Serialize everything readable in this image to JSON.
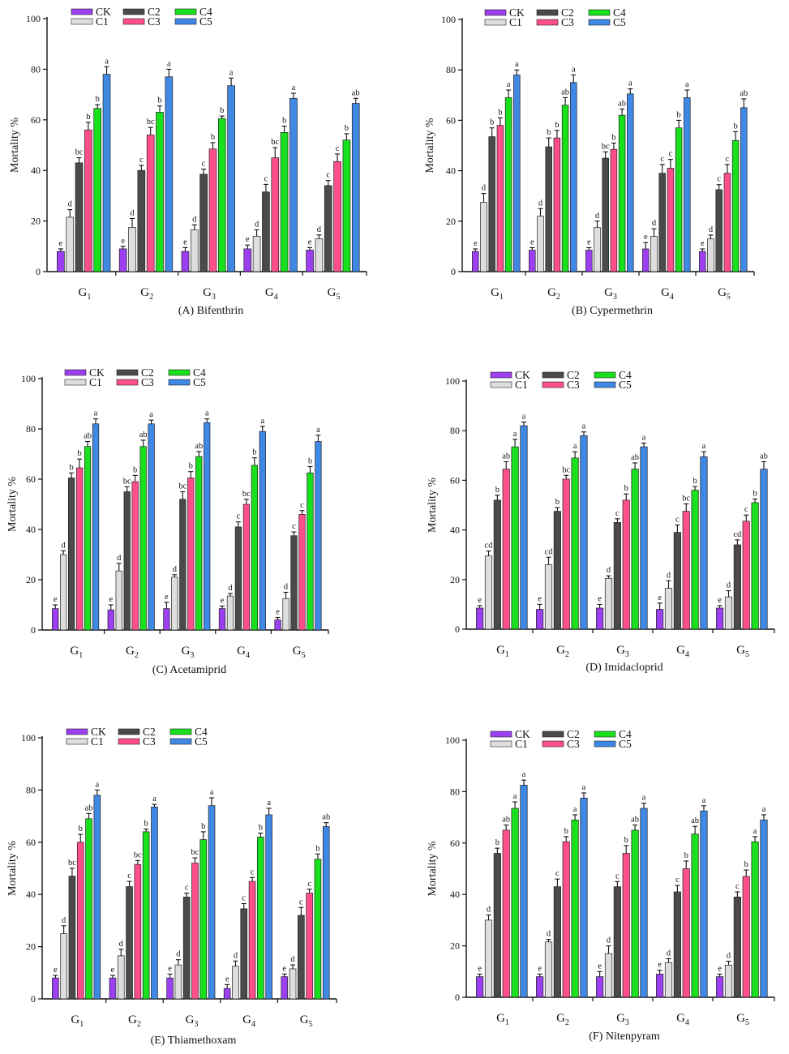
{
  "colors": {
    "CK": "#9b3ff0",
    "C1": "#dedede",
    "C2": "#4a4a4a",
    "C3": "#ff4f8b",
    "C4": "#19e01d",
    "C5": "#3f88e3"
  },
  "legend": [
    "CK",
    "C1",
    "C2",
    "C3",
    "C4",
    "C5"
  ],
  "chart_data": [
    {
      "type": "bar",
      "title": "(A) Bifenthrin",
      "ylabel": "Mortality %",
      "ylim": [
        0,
        100
      ],
      "yticks": [
        "0",
        "20",
        "40",
        "60",
        "80",
        "100"
      ],
      "categories": [
        {
          "base": "G",
          "sub": "1"
        },
        {
          "base": "G",
          "sub": "2"
        },
        {
          "base": "G",
          "sub": "3"
        },
        {
          "base": "G",
          "sub": "4"
        },
        {
          "base": "G",
          "sub": "5"
        }
      ],
      "series": [
        {
          "name": "CK",
          "values": [
            8,
            9,
            8,
            9,
            8.5
          ],
          "errors": [
            1,
            1,
            1.5,
            1.5,
            1
          ],
          "letters": [
            "e",
            "e",
            "e",
            "e",
            "e"
          ]
        },
        {
          "name": "C1",
          "values": [
            21.5,
            17.5,
            16.5,
            14,
            13
          ],
          "errors": [
            3,
            3.5,
            2,
            2.5,
            1.5
          ],
          "letters": [
            "d",
            "d",
            "d",
            "d",
            "d"
          ]
        },
        {
          "name": "C2",
          "values": [
            43,
            40,
            38.5,
            31.5,
            34
          ],
          "errors": [
            2,
            2,
            2,
            3,
            2
          ],
          "letters": [
            "bc",
            "c",
            "c",
            "c",
            "c"
          ]
        },
        {
          "name": "C3",
          "values": [
            56,
            54,
            48.5,
            45,
            43.5
          ],
          "errors": [
            3,
            3,
            2.5,
            4,
            3
          ],
          "letters": [
            "b",
            "bc",
            "b",
            "bc",
            "c"
          ]
        },
        {
          "name": "C4",
          "values": [
            64.5,
            63,
            60.5,
            55,
            52
          ],
          "errors": [
            1.5,
            2.5,
            1,
            2.5,
            2.5
          ],
          "letters": [
            "b",
            "b",
            "b",
            "b",
            "b"
          ]
        },
        {
          "name": "C5",
          "values": [
            78,
            77,
            73.5,
            68.5,
            66.5
          ],
          "errors": [
            3,
            3,
            3,
            2,
            2
          ],
          "letters": [
            "a",
            "a",
            "a",
            "a",
            "ab"
          ]
        }
      ]
    },
    {
      "type": "bar",
      "title": "(B) Cypermethrin",
      "ylabel": "Mortality %",
      "ylim": [
        0,
        100
      ],
      "yticks": [
        "0",
        "20",
        "40",
        "60",
        "80",
        "100"
      ],
      "categories": [
        {
          "base": "G",
          "sub": "1"
        },
        {
          "base": "G",
          "sub": "2"
        },
        {
          "base": "G",
          "sub": "3"
        },
        {
          "base": "G",
          "sub": "4"
        },
        {
          "base": "G",
          "sub": "5"
        }
      ],
      "series": [
        {
          "name": "CK",
          "values": [
            8,
            8.5,
            8.5,
            9,
            8
          ],
          "errors": [
            1,
            1,
            1,
            2.5,
            1
          ],
          "letters": [
            "e",
            "e",
            "e",
            "e",
            "e"
          ]
        },
        {
          "name": "C1",
          "values": [
            27.5,
            22,
            17.5,
            14,
            13
          ],
          "errors": [
            3.5,
            3,
            2.5,
            3,
            1.5
          ],
          "letters": [
            "d",
            "d",
            "d",
            "d",
            "d"
          ]
        },
        {
          "name": "C2",
          "values": [
            53.5,
            49.5,
            45,
            39,
            32.5
          ],
          "errors": [
            3.5,
            3.5,
            2.5,
            3.5,
            2
          ],
          "letters": [
            "b",
            "b",
            "bc",
            "c",
            "c"
          ]
        },
        {
          "name": "C3",
          "values": [
            58,
            53,
            48.5,
            41,
            39
          ],
          "errors": [
            3,
            3,
            2.5,
            3.5,
            3.5
          ],
          "letters": [
            "b",
            "b",
            "b",
            "c",
            "c"
          ]
        },
        {
          "name": "C4",
          "values": [
            69,
            66,
            62,
            57,
            52
          ],
          "errors": [
            3,
            3,
            2.5,
            3,
            3.5
          ],
          "letters": [
            "a",
            "ab",
            "ab",
            "b",
            "b"
          ]
        },
        {
          "name": "C5",
          "values": [
            78,
            75,
            70.5,
            69,
            65
          ],
          "errors": [
            2,
            3,
            2,
            3,
            3.5
          ],
          "letters": [
            "a",
            "a",
            "a",
            "a",
            "ab"
          ]
        }
      ]
    },
    {
      "type": "bar",
      "title": "(C) Acetamiprid",
      "ylabel": "Mortality %",
      "ylim": [
        0,
        100
      ],
      "yticks": [
        "0",
        "20",
        "40",
        "60",
        "80",
        "100"
      ],
      "categories": [
        {
          "base": "G",
          "sub": "1"
        },
        {
          "base": "G",
          "sub": "2"
        },
        {
          "base": "G",
          "sub": "3"
        },
        {
          "base": "G",
          "sub": "4"
        },
        {
          "base": "G",
          "sub": "5"
        }
      ],
      "series": [
        {
          "name": "CK",
          "values": [
            8.5,
            8,
            8.5,
            8.5,
            4
          ],
          "errors": [
            1.5,
            2,
            2.5,
            1,
            1
          ],
          "letters": [
            "e",
            "e",
            "e",
            "e",
            "e"
          ]
        },
        {
          "name": "C1",
          "values": [
            30,
            23.5,
            21,
            13.5,
            12.5
          ],
          "errors": [
            1.5,
            3,
            1,
            1,
            2.5
          ],
          "letters": [
            "d",
            "d",
            "d",
            "d",
            "d"
          ]
        },
        {
          "name": "C2",
          "values": [
            60.5,
            55,
            52,
            41,
            37.5
          ],
          "errors": [
            2,
            2,
            3,
            2,
            1.5
          ],
          "letters": [
            "b",
            "bc",
            "bc",
            "c",
            "c"
          ]
        },
        {
          "name": "C3",
          "values": [
            64.5,
            59,
            60.5,
            50,
            46
          ],
          "errors": [
            3.5,
            2.5,
            2.5,
            2,
            1.5
          ],
          "letters": [
            "b",
            "b",
            "b",
            "bc",
            "c"
          ]
        },
        {
          "name": "C4",
          "values": [
            73,
            73,
            69,
            65.5,
            62.5
          ],
          "errors": [
            2,
            2.5,
            2,
            3,
            2.5
          ],
          "letters": [
            "ab",
            "ab",
            "ab",
            "b",
            "b"
          ]
        },
        {
          "name": "C5",
          "values": [
            82,
            82,
            82.5,
            79,
            75
          ],
          "errors": [
            2,
            1.5,
            1.5,
            2,
            2.5
          ],
          "letters": [
            "a",
            "a",
            "a",
            "a",
            "a"
          ]
        }
      ]
    },
    {
      "type": "bar",
      "title": "(D) Imidacloprid",
      "ylabel": "Mortality %",
      "ylim": [
        0,
        100
      ],
      "yticks": [
        "0",
        "20",
        "40",
        "60",
        "80",
        "100"
      ],
      "categories": [
        {
          "base": "G",
          "sub": "1"
        },
        {
          "base": "G",
          "sub": "2"
        },
        {
          "base": "G",
          "sub": "3"
        },
        {
          "base": "G",
          "sub": "4"
        },
        {
          "base": "G",
          "sub": "5"
        }
      ],
      "series": [
        {
          "name": "CK",
          "values": [
            8.5,
            8,
            8.5,
            8,
            8.5
          ],
          "errors": [
            1,
            2,
            1.5,
            2.5,
            1
          ],
          "letters": [
            "e",
            "e",
            "e",
            "e",
            "e"
          ]
        },
        {
          "name": "C1",
          "values": [
            29.5,
            26,
            20.5,
            16.5,
            13
          ],
          "errors": [
            2,
            3,
            1,
            3,
            2.5
          ],
          "letters": [
            "cd",
            "cd",
            "d",
            "d",
            "d"
          ]
        },
        {
          "name": "C2",
          "values": [
            52,
            47.5,
            43,
            39,
            34
          ],
          "errors": [
            2,
            1.5,
            1.5,
            3,
            2
          ],
          "letters": [
            "b",
            "b",
            "c",
            "c",
            "cd"
          ]
        },
        {
          "name": "C3",
          "values": [
            64.5,
            60.5,
            52,
            47.5,
            43.5
          ],
          "errors": [
            3,
            1.5,
            2.5,
            3,
            2.5
          ],
          "letters": [
            "ab",
            "bc",
            "b",
            "bc",
            "c"
          ]
        },
        {
          "name": "C4",
          "values": [
            73.5,
            69,
            64.5,
            56,
            51
          ],
          "errors": [
            3,
            2.5,
            2.5,
            1.5,
            1.5
          ],
          "letters": [
            "a",
            "a",
            "ab",
            "b",
            "b"
          ]
        },
        {
          "name": "C5",
          "values": [
            82,
            78,
            73.5,
            69.5,
            64.5
          ],
          "errors": [
            1.5,
            1.5,
            1.5,
            2,
            3
          ],
          "letters": [
            "a",
            "a",
            "a",
            "a",
            "ab"
          ]
        }
      ]
    },
    {
      "type": "bar",
      "title": "(E) Thiamethoxam",
      "ylabel": "Mortality %",
      "ylim": [
        0,
        100
      ],
      "yticks": [
        "0",
        "20",
        "40",
        "60",
        "80",
        "100"
      ],
      "categories": [
        {
          "base": "G",
          "sub": "1"
        },
        {
          "base": "G",
          "sub": "2"
        },
        {
          "base": "G",
          "sub": "3"
        },
        {
          "base": "G",
          "sub": "4"
        },
        {
          "base": "G",
          "sub": "5"
        }
      ],
      "series": [
        {
          "name": "CK",
          "values": [
            8,
            8,
            8,
            4,
            8.5
          ],
          "errors": [
            1,
            1,
            1.5,
            1.5,
            1
          ],
          "letters": [
            "e",
            "e",
            "e",
            "e",
            "e"
          ]
        },
        {
          "name": "C1",
          "values": [
            25,
            16.5,
            13,
            12.5,
            11.5
          ],
          "errors": [
            3,
            2.5,
            2,
            2,
            1.5
          ],
          "letters": [
            "d",
            "d",
            "d",
            "d",
            "d"
          ]
        },
        {
          "name": "C2",
          "values": [
            47,
            43,
            39,
            34.5,
            32
          ],
          "errors": [
            3,
            2,
            1.5,
            2,
            3
          ],
          "letters": [
            "bc",
            "c",
            "c",
            "c",
            "c"
          ]
        },
        {
          "name": "C3",
          "values": [
            60,
            51.5,
            52,
            45,
            40.5
          ],
          "errors": [
            3,
            1.5,
            2,
            1.5,
            1.5
          ],
          "letters": [
            "b",
            "bc",
            "bc",
            "c",
            "c"
          ]
        },
        {
          "name": "C4",
          "values": [
            69,
            64,
            61,
            62,
            53.5
          ],
          "errors": [
            2,
            1,
            3,
            1.5,
            2
          ],
          "letters": [
            "ab",
            "b",
            "b",
            "b",
            "b"
          ]
        },
        {
          "name": "C5",
          "values": [
            78,
            73.5,
            74,
            70.5,
            66
          ],
          "errors": [
            2,
            1,
            3,
            2.5,
            1.5
          ],
          "letters": [
            "a",
            "a",
            "a",
            "a",
            "ab"
          ]
        }
      ]
    },
    {
      "type": "bar",
      "title": "(F) Nitenpyram",
      "ylabel": "Mortality %",
      "ylim": [
        0,
        100
      ],
      "yticks": [
        "0",
        "20",
        "40",
        "60",
        "80",
        "100"
      ],
      "categories": [
        {
          "base": "G",
          "sub": "1"
        },
        {
          "base": "G",
          "sub": "2"
        },
        {
          "base": "G",
          "sub": "3"
        },
        {
          "base": "G",
          "sub": "4"
        },
        {
          "base": "G",
          "sub": "5"
        }
      ],
      "series": [
        {
          "name": "CK",
          "values": [
            8,
            8,
            8,
            9,
            8
          ],
          "errors": [
            1,
            1,
            2,
            1.5,
            1
          ],
          "letters": [
            "e",
            "e",
            "e",
            "e",
            "e"
          ]
        },
        {
          "name": "C1",
          "values": [
            30,
            21.5,
            17,
            13.5,
            12.5
          ],
          "errors": [
            2,
            1,
            3,
            1.5,
            1.5
          ],
          "letters": [
            "d",
            "d",
            "d",
            "d",
            "d"
          ]
        },
        {
          "name": "C2",
          "values": [
            56,
            43,
            43,
            41,
            39
          ],
          "errors": [
            2,
            3,
            2,
            2.5,
            2
          ],
          "letters": [
            "b",
            "c",
            "c",
            "c",
            "c"
          ]
        },
        {
          "name": "C3",
          "values": [
            65,
            60.5,
            56,
            50,
            47
          ],
          "errors": [
            2,
            2,
            3,
            3,
            2.5
          ],
          "letters": [
            "ab",
            "b",
            "b",
            "b",
            "b"
          ]
        },
        {
          "name": "C4",
          "values": [
            73.5,
            69,
            65,
            63.5,
            60.5
          ],
          "errors": [
            2.5,
            2,
            2,
            3,
            2
          ],
          "letters": [
            "a",
            "a",
            "ab",
            "ab",
            "a"
          ]
        },
        {
          "name": "C5",
          "values": [
            82.5,
            77.5,
            73.5,
            72.5,
            69
          ],
          "errors": [
            2,
            2,
            2,
            2,
            2
          ],
          "letters": [
            "a",
            "a",
            "a",
            "a",
            "a"
          ]
        }
      ]
    }
  ]
}
